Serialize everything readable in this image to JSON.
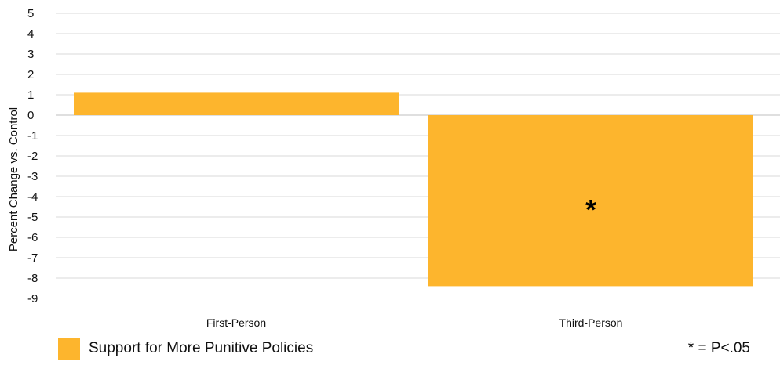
{
  "chart_data": {
    "type": "bar",
    "categories": [
      "First-Person",
      "Third-Person"
    ],
    "series": [
      {
        "name": "Support for More Punitive Policies",
        "values": [
          1.1,
          -8.4
        ],
        "color": "#FDB52D"
      }
    ],
    "annotations": [
      {
        "category": "Third-Person",
        "text": "*"
      }
    ],
    "ylabel": "Percent Change vs. Control",
    "xlabel": "",
    "ylim": [
      -9,
      5
    ],
    "yticks": [
      5,
      4,
      3,
      2,
      1,
      0,
      -1,
      -2,
      -3,
      -4,
      -5,
      -6,
      -7,
      -8,
      -9
    ],
    "grid": true,
    "legend_position": "bottom-left",
    "footnote": "* = P<.05",
    "colors": {
      "bar": "#FDB52D",
      "grid": "#D9D9D9",
      "text": "#000000"
    }
  }
}
